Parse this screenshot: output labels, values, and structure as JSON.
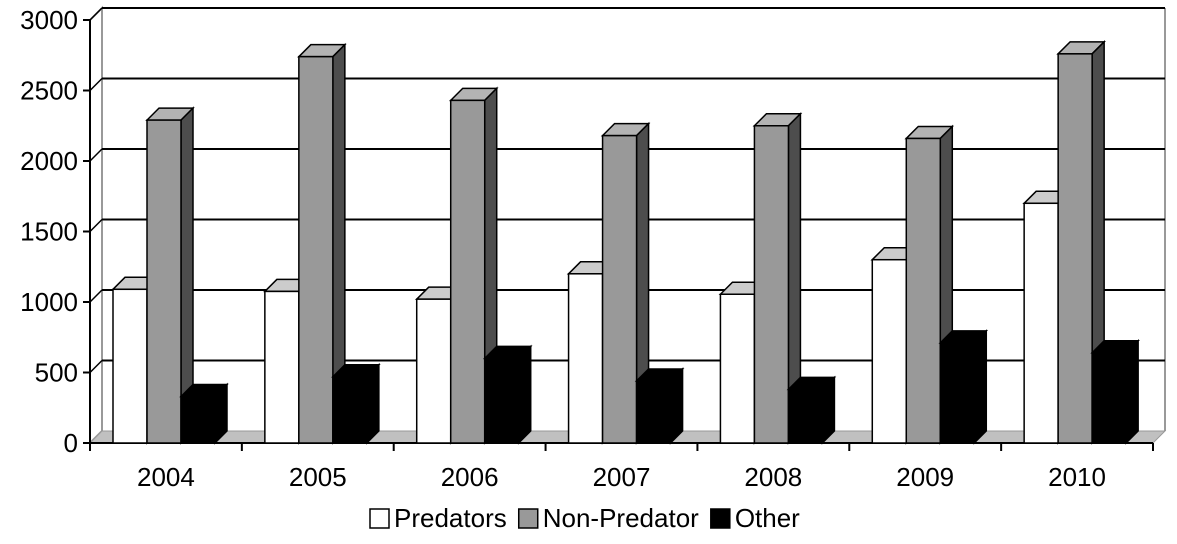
{
  "chart_data": {
    "type": "bar",
    "style": "3d-clustered",
    "categories": [
      "2004",
      "2005",
      "2006",
      "2007",
      "2008",
      "2009",
      "2010"
    ],
    "series": [
      {
        "name": "Predators",
        "color": "#ffffff",
        "values": [
          1090,
          1075,
          1020,
          1200,
          1055,
          1300,
          1700
        ]
      },
      {
        "name": "Non-Predator",
        "color": "#999999",
        "values": [
          2290,
          2740,
          2430,
          2180,
          2250,
          2160,
          2760
        ]
      },
      {
        "name": "Other",
        "color": "#000000",
        "values": [
          330,
          470,
          600,
          440,
          380,
          710,
          640
        ]
      }
    ],
    "ylim": [
      0,
      3000
    ],
    "yticks": [
      "0",
      "500",
      "1000",
      "1500",
      "2000",
      "2500",
      "3000"
    ],
    "grid": true,
    "legend_position": "bottom"
  }
}
